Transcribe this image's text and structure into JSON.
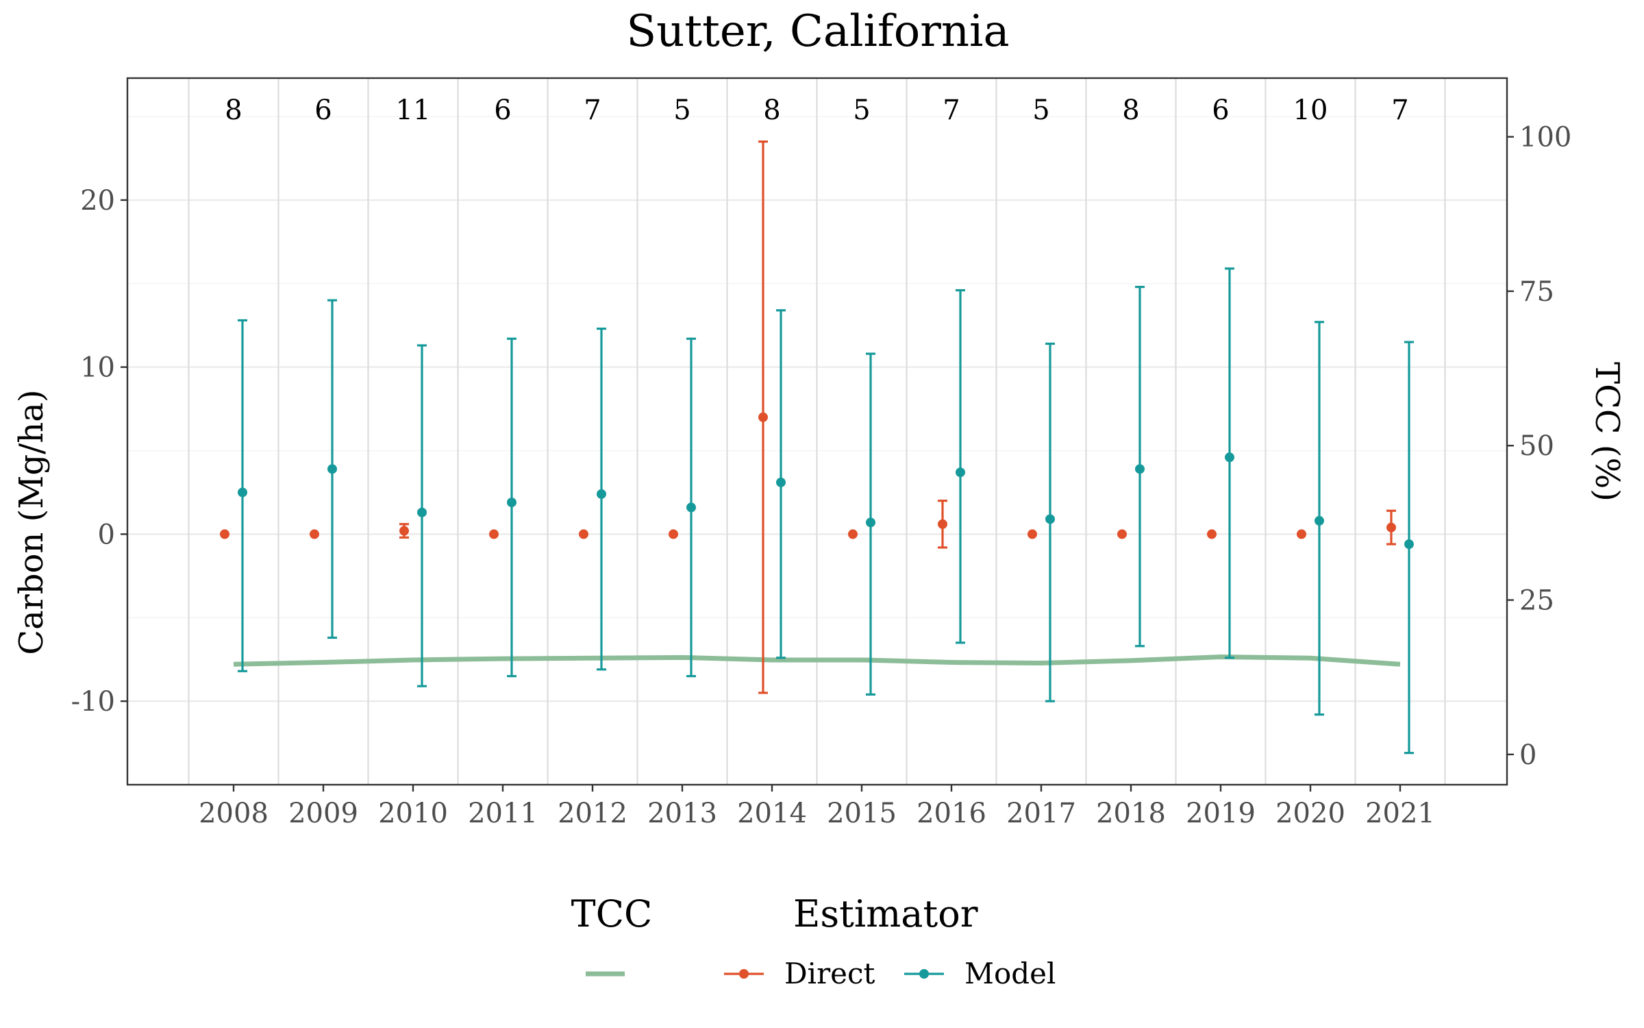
{
  "chart_data": {
    "type": "line",
    "title": "Sutter, California",
    "ylabel": "Carbon (Mg/ha)",
    "y2label": "TCC (%)",
    "ylim": [
      -15.0,
      27.3
    ],
    "y2lim": [
      -4.9,
      109.5
    ],
    "yticks": [
      "-10",
      "0",
      "10",
      "20"
    ],
    "y2ticks": [
      "0",
      "25",
      "50",
      "75",
      "100"
    ],
    "categories": [
      "2008",
      "2009",
      "2010",
      "2011",
      "2012",
      "2013",
      "2014",
      "2015",
      "2016",
      "2017",
      "2018",
      "2019",
      "2020",
      "2021"
    ],
    "counts": [
      "8",
      "6",
      "11",
      "6",
      "7",
      "5",
      "8",
      "5",
      "7",
      "5",
      "8",
      "6",
      "10",
      "7"
    ],
    "grid": true,
    "legend_position": "bottom",
    "colors": {
      "direct": "#e0502a",
      "model": "#16999a",
      "tcc": "#8cbd98"
    },
    "series": [
      {
        "name": "Direct",
        "values": [
          0,
          0,
          0.2,
          0,
          0,
          0,
          7.0,
          0,
          0.6,
          0,
          0,
          0,
          0,
          0.4
        ],
        "lower": [
          0,
          0,
          -0.2,
          0,
          0,
          0,
          -9.5,
          0,
          -0.8,
          0,
          0,
          0,
          0,
          -0.6
        ],
        "upper": [
          0,
          0,
          0.6,
          0,
          0,
          0,
          23.5,
          0,
          2.0,
          0,
          0,
          0,
          0,
          1.4
        ]
      },
      {
        "name": "Model",
        "values": [
          2.5,
          3.9,
          1.3,
          1.9,
          2.4,
          1.6,
          3.1,
          0.7,
          3.7,
          0.9,
          3.9,
          4.6,
          0.8,
          -0.6
        ],
        "lower": [
          -8.2,
          -6.2,
          -9.1,
          -8.5,
          -8.1,
          -8.5,
          -7.4,
          -9.6,
          -6.5,
          -10.0,
          -6.7,
          -7.4,
          -10.8,
          -13.1
        ],
        "upper": [
          12.8,
          14.0,
          11.3,
          11.7,
          12.3,
          11.7,
          13.4,
          10.8,
          14.6,
          11.4,
          14.8,
          15.9,
          12.7,
          11.5
        ]
      },
      {
        "name": "TCC",
        "axis": "right",
        "values": [
          14.6,
          14.9,
          15.3,
          15.5,
          15.6,
          15.7,
          15.3,
          15.3,
          14.9,
          14.8,
          15.2,
          15.8,
          15.6,
          14.6
        ]
      }
    ],
    "legend": {
      "tcc_title": "TCC",
      "estimator_title": "Estimator",
      "items": [
        "Direct",
        "Model"
      ]
    }
  }
}
